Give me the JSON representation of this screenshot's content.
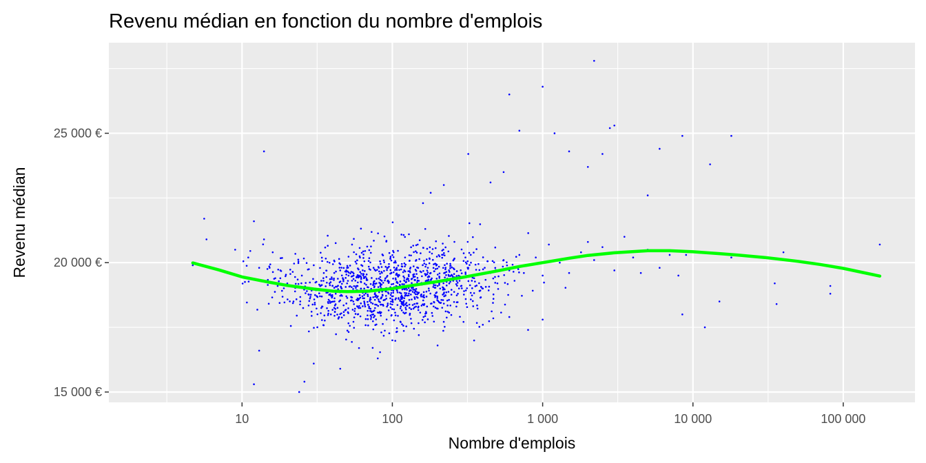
{
  "chart_data": {
    "type": "scatter",
    "title": "Revenu médian en fonction du nombre d'emplois",
    "xlabel": "Nombre d'emplois",
    "ylabel": "Revenu médian",
    "x_scale": "log10",
    "xlim": [
      1.3,
      300000
    ],
    "ylim": [
      14600,
      28500
    ],
    "x_ticks": [
      {
        "value": 10,
        "label": "10"
      },
      {
        "value": 100,
        "label": "100"
      },
      {
        "value": 1000,
        "label": "1 000"
      },
      {
        "value": 10000,
        "label": "10 000"
      },
      {
        "value": 100000,
        "label": "100 000"
      }
    ],
    "x_minor_ticks": [
      3.16,
      31.6,
      316,
      3160,
      31600
    ],
    "y_ticks": [
      {
        "value": 15000,
        "label": "15 000  €"
      },
      {
        "value": 20000,
        "label": "20 000  €"
      },
      {
        "value": 25000,
        "label": "25 000  €"
      }
    ],
    "y_minor_ticks": [
      17500,
      22500,
      27500
    ],
    "grid": true,
    "point_color": "#0000ff",
    "smooth_color": "#00ff00",
    "panel_background": "#ebebeb",
    "gridline_color": "#ffffff",
    "series": [
      {
        "type": "scatter",
        "x": [
          4.7,
          5.6,
          5.8,
          9,
          11,
          12,
          13,
          14,
          16,
          18,
          20,
          22,
          25,
          27,
          30,
          33,
          35,
          40,
          42,
          45,
          50,
          55,
          60,
          65,
          70,
          75,
          80,
          90,
          100,
          110,
          120,
          130,
          150,
          160,
          180,
          200,
          220,
          250,
          280,
          300,
          320,
          350,
          400,
          450,
          500,
          550,
          600,
          650,
          700,
          750,
          800,
          900,
          1000,
          1100,
          1300,
          1500,
          1800,
          2000,
          2200,
          2500,
          3000,
          3500,
          4000,
          4500,
          5000,
          6000,
          7000,
          8000,
          8500,
          9000,
          12000,
          15000,
          18000,
          35000,
          40000,
          82000,
          175000,
          14,
          24,
          26,
          13,
          12,
          600,
          1000,
          2200,
          700,
          2800,
          3000,
          18000,
          13000,
          8500,
          6000,
          450,
          320,
          220,
          180,
          160,
          550,
          1200,
          1500,
          2000,
          2500,
          5000,
          30,
          45,
          60,
          80,
          100,
          150,
          200,
          400,
          600,
          800,
          1000,
          36000,
          82000
        ],
        "y": [
          19900,
          21700,
          20900,
          20500,
          20200,
          21600,
          19800,
          20900,
          20400,
          19700,
          19200,
          18500,
          19500,
          18900,
          19900,
          18700,
          19600,
          19100,
          18800,
          19700,
          19200,
          18500,
          19500,
          19000,
          18300,
          19800,
          18700,
          19400,
          19000,
          18600,
          19700,
          18900,
          19300,
          18700,
          19600,
          19100,
          18800,
          19500,
          19300,
          18900,
          19800,
          19400,
          19000,
          19600,
          19200,
          20100,
          19700,
          19300,
          20300,
          19600,
          19900,
          20200,
          19500,
          20700,
          20000,
          19600,
          20400,
          20800,
          20100,
          20600,
          19700,
          21000,
          20200,
          19600,
          20500,
          19800,
          20300,
          19500,
          18000,
          20300,
          17500,
          18500,
          20200,
          19200,
          20400,
          18800,
          20700,
          24300,
          15000,
          15400,
          16600,
          15300,
          26500,
          26800,
          27800,
          25100,
          25200,
          25300,
          24900,
          23800,
          24900,
          24400,
          23100,
          24200,
          23000,
          22700,
          22300,
          23500,
          25000,
          24300,
          23700,
          24200,
          22600,
          16100,
          15900,
          16700,
          16300,
          17000,
          17200,
          16800,
          17600,
          17900,
          17400,
          17800,
          18400,
          19100
        ]
      },
      {
        "type": "line",
        "name": "",
        "x": [
          4.7,
          7,
          10,
          15,
          20,
          30,
          40,
          50,
          70,
          100,
          150,
          200,
          300,
          500,
          700,
          1000,
          1500,
          2000,
          3000,
          5000,
          7000,
          10000,
          15000,
          20000,
          30000,
          50000,
          70000,
          100000,
          175000
        ],
        "y": [
          19990,
          19720,
          19450,
          19250,
          19120,
          18980,
          18900,
          18880,
          18900,
          19000,
          19160,
          19270,
          19440,
          19680,
          19850,
          20000,
          20170,
          20280,
          20380,
          20460,
          20460,
          20420,
          20350,
          20290,
          20200,
          20050,
          19930,
          19780,
          19480
        ]
      }
    ]
  }
}
